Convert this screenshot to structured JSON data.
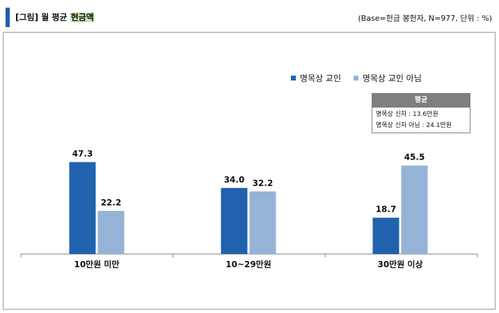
{
  "header": {
    "title_prefix": "[그림] 월 평균",
    "title_highlight": "현금액",
    "base_note": "(Base=헌금 봉헌자, N=977, 단위 : %)"
  },
  "colors": {
    "series1": "#2062ae",
    "series2": "#95b3d7",
    "accent": "#1f5fad"
  },
  "average_box": {
    "title": "평균",
    "lines": [
      "명목상 신자 : 13.6만원",
      "명목상 신자 아님 : 24.1만원"
    ]
  },
  "chart_data": {
    "type": "bar",
    "categories": [
      "10만원 미만",
      "10~29만원",
      "30만원 이상"
    ],
    "series": [
      {
        "name": "명목상 교인",
        "values": [
          47.3,
          34.0,
          18.7
        ]
      },
      {
        "name": "명목상 교인 아님",
        "values": [
          22.2,
          32.2,
          45.5
        ]
      }
    ],
    "value_labels": [
      [
        "47.3",
        "34.0",
        "18.7"
      ],
      [
        "22.2",
        "32.2",
        "45.5"
      ]
    ],
    "ylim": [
      0,
      50
    ],
    "grid": false,
    "legend_position": "top-right"
  }
}
